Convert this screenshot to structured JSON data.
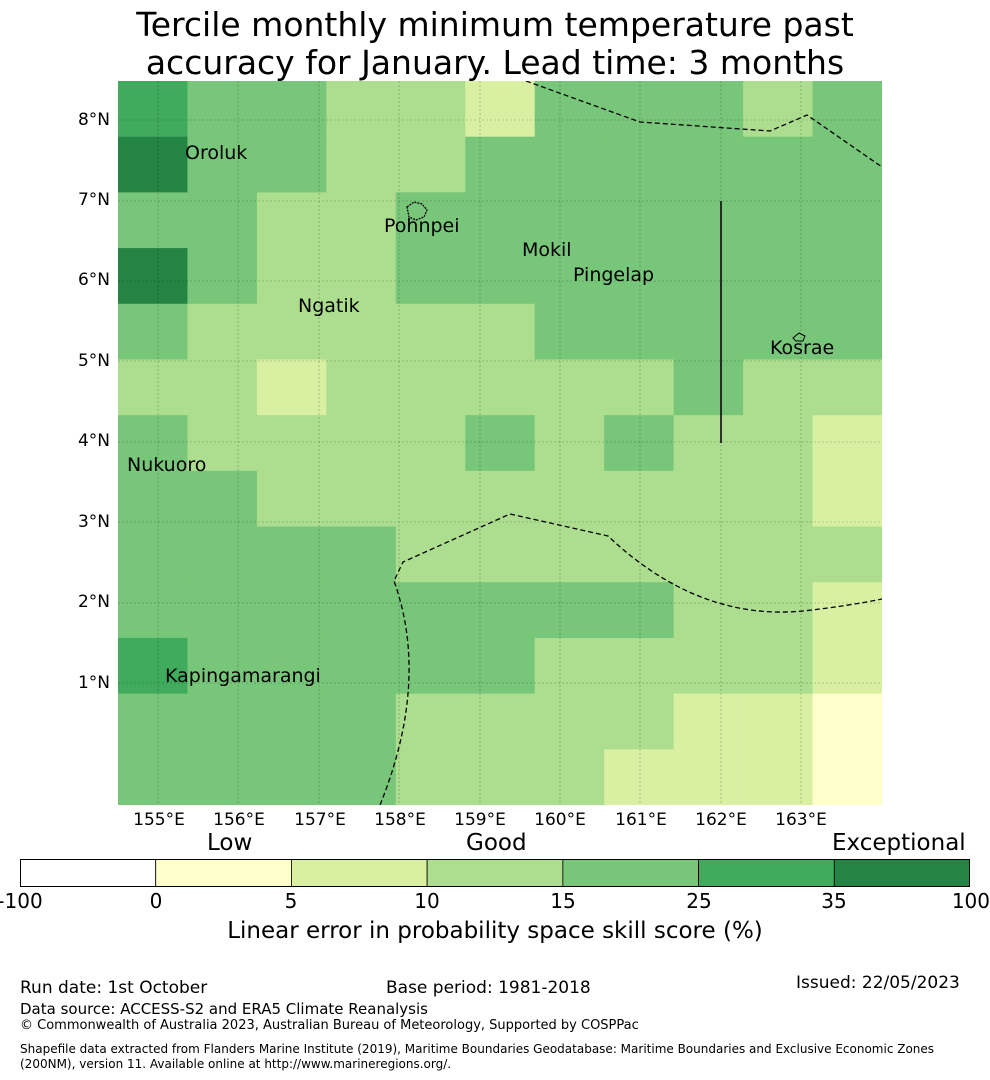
{
  "title_line1": "Tercile monthly minimum temperature past",
  "title_line2": "accuracy for January. Lead time: 3 months",
  "map": {
    "lon_labels": [
      "155°E",
      "156°E",
      "157°E",
      "158°E",
      "159°E",
      "160°E",
      "161°E",
      "162°E",
      "163°E"
    ],
    "lat_labels": [
      "8°N",
      "7°N",
      "6°N",
      "5°N",
      "4°N",
      "3°N",
      "2°N",
      "1°N"
    ],
    "places": [
      "Oroluk",
      "Pohnpei",
      "Mokil",
      "Pingelap",
      "Ngatik",
      "Kosrae",
      "Nukuoro",
      "Kapingamarangi"
    ],
    "grid_columns": 11,
    "grid_rows": 13,
    "cell_classes": [
      [
        "5",
        "4",
        "4",
        "3",
        "3",
        "2",
        "4",
        "4",
        "4",
        "3",
        "4"
      ],
      [
        "6",
        "4",
        "4",
        "3",
        "3",
        "4",
        "4",
        "4",
        "4",
        "4",
        "4"
      ],
      [
        "4",
        "4",
        "3",
        "3",
        "4",
        "4",
        "4",
        "4",
        "4",
        "4",
        "4"
      ],
      [
        "6",
        "4",
        "3",
        "3",
        "4",
        "4",
        "4",
        "4",
        "4",
        "4",
        "4"
      ],
      [
        "4",
        "3",
        "3",
        "3",
        "3",
        "3",
        "4",
        "4",
        "4",
        "4",
        "4"
      ],
      [
        "3",
        "3",
        "2",
        "3",
        "3",
        "3",
        "3",
        "3",
        "4",
        "3",
        "3"
      ],
      [
        "4",
        "3",
        "3",
        "3",
        "3",
        "4",
        "3",
        "4",
        "3",
        "3",
        "2"
      ],
      [
        "4",
        "4",
        "3",
        "3",
        "3",
        "3",
        "3",
        "3",
        "3",
        "3",
        "2"
      ],
      [
        "4",
        "4",
        "4",
        "4",
        "3",
        "3",
        "3",
        "3",
        "3",
        "3",
        "3"
      ],
      [
        "4",
        "4",
        "4",
        "4",
        "4",
        "4",
        "4",
        "4",
        "3",
        "3",
        "2"
      ],
      [
        "5",
        "4",
        "4",
        "4",
        "4",
        "4",
        "3",
        "3",
        "3",
        "3",
        "2"
      ],
      [
        "4",
        "4",
        "4",
        "4",
        "3",
        "3",
        "3",
        "3",
        "2",
        "2",
        "1"
      ],
      [
        "4",
        "4",
        "4",
        "4",
        "3",
        "3",
        "3",
        "2",
        "2",
        "2",
        "1"
      ]
    ]
  },
  "colorbar": {
    "heading_low": "Low",
    "heading_good": "Good",
    "heading_exceptional": "Exceptional",
    "ticks": [
      "-100",
      "0",
      "5",
      "10",
      "15",
      "25",
      "35",
      "100"
    ],
    "colors": [
      "#ffffff",
      "#ffffcc",
      "#d9f0a3",
      "#addd8e",
      "#78c679",
      "#41ab5d",
      "#238443"
    ],
    "label": "Linear error in probability space skill score (%)"
  },
  "footer": {
    "run_date": "Run date: 1st October",
    "base_period": "Base period: 1981-2018",
    "issued": "Issued: 22/05/2023",
    "data_source": "Data source: ACCESS-S2 and ERA5 Climate Reanalysis",
    "copyright": "© Commonwealth of Australia 2023, Australian Bureau of Meteorology, Supported by COSPPac",
    "shapefile_line1": "Shapefile data extracted from Flanders Marine Institute (2019), Maritime Boundaries Geodatabase: Maritime Boundaries and Exclusive Economic Zones",
    "shapefile_line2": "(200NM), version 11. Available online at http://www.marineregions.org/."
  }
}
